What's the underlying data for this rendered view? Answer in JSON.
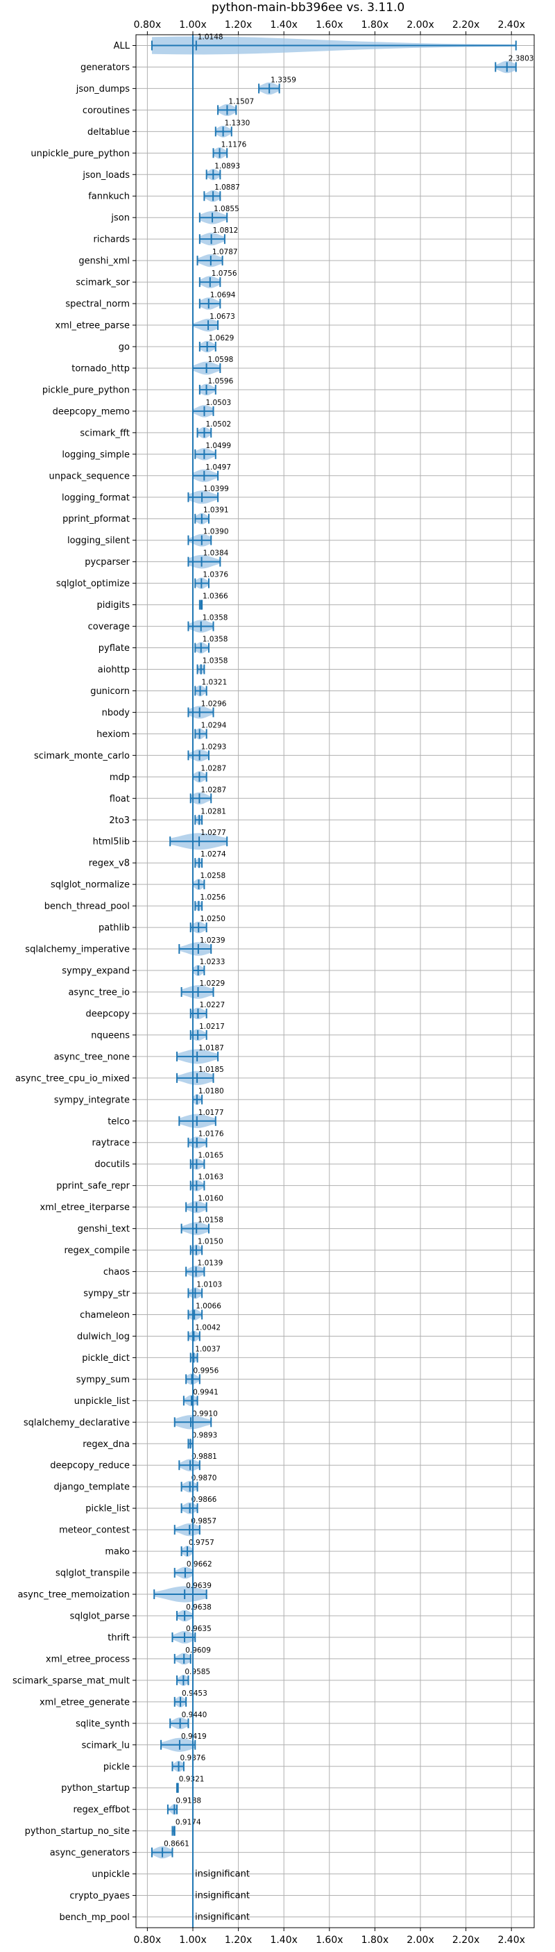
{
  "chart_data": {
    "type": "violin",
    "title": "python-main-bb396ee vs. 3.11.0",
    "xlim": [
      0.75,
      2.5
    ],
    "x_ticks": [
      0.8,
      1.0,
      1.2,
      1.4,
      1.6,
      1.8,
      2.0,
      2.2,
      2.4
    ],
    "x_tick_labels": [
      "0.80x",
      "1.00x",
      "1.20x",
      "1.40x",
      "1.60x",
      "1.80x",
      "2.00x",
      "2.20x",
      "2.40x"
    ],
    "reference_line": 1.0,
    "grid": true,
    "colors": {
      "line": "#1f77b4",
      "violin": "#9ec4e6"
    },
    "insignificant_text": "insignificant",
    "benchmarks": [
      {
        "name": "ALL",
        "value": 1.0148,
        "label": "1.0148",
        "lo": 0.82,
        "hi": 2.42
      },
      {
        "name": "generators",
        "value": 2.3803,
        "label": "2.3803",
        "lo": 2.33,
        "hi": 2.42
      },
      {
        "name": "json_dumps",
        "value": 1.3359,
        "label": "1.3359",
        "lo": 1.29,
        "hi": 1.38
      },
      {
        "name": "coroutines",
        "value": 1.1507,
        "label": "1.1507",
        "lo": 1.11,
        "hi": 1.19
      },
      {
        "name": "deltablue",
        "value": 1.133,
        "label": "1.1330",
        "lo": 1.1,
        "hi": 1.17
      },
      {
        "name": "unpickle_pure_python",
        "value": 1.1176,
        "label": "1.1176",
        "lo": 1.09,
        "hi": 1.15
      },
      {
        "name": "json_loads",
        "value": 1.0893,
        "label": "1.0893",
        "lo": 1.06,
        "hi": 1.12
      },
      {
        "name": "fannkuch",
        "value": 1.0887,
        "label": "1.0887",
        "lo": 1.05,
        "hi": 1.12
      },
      {
        "name": "json",
        "value": 1.0855,
        "label": "1.0855",
        "lo": 1.03,
        "hi": 1.15
      },
      {
        "name": "richards",
        "value": 1.0812,
        "label": "1.0812",
        "lo": 1.03,
        "hi": 1.14
      },
      {
        "name": "genshi_xml",
        "value": 1.0787,
        "label": "1.0787",
        "lo": 1.02,
        "hi": 1.13
      },
      {
        "name": "scimark_sor",
        "value": 1.0756,
        "label": "1.0756",
        "lo": 1.03,
        "hi": 1.12
      },
      {
        "name": "spectral_norm",
        "value": 1.0694,
        "label": "1.0694",
        "lo": 1.03,
        "hi": 1.12
      },
      {
        "name": "xml_etree_parse",
        "value": 1.0673,
        "label": "1.0673",
        "lo": 1.0,
        "hi": 1.11
      },
      {
        "name": "go",
        "value": 1.0629,
        "label": "1.0629",
        "lo": 1.03,
        "hi": 1.1
      },
      {
        "name": "tornado_http",
        "value": 1.0598,
        "label": "1.0598",
        "lo": 1.0,
        "hi": 1.12
      },
      {
        "name": "pickle_pure_python",
        "value": 1.0596,
        "label": "1.0596",
        "lo": 1.03,
        "hi": 1.1
      },
      {
        "name": "deepcopy_memo",
        "value": 1.0503,
        "label": "1.0503",
        "lo": 1.0,
        "hi": 1.09
      },
      {
        "name": "scimark_fft",
        "value": 1.0502,
        "label": "1.0502",
        "lo": 1.02,
        "hi": 1.08
      },
      {
        "name": "logging_simple",
        "value": 1.0499,
        "label": "1.0499",
        "lo": 1.01,
        "hi": 1.1
      },
      {
        "name": "unpack_sequence",
        "value": 1.0497,
        "label": "1.0497",
        "lo": 1.0,
        "hi": 1.11
      },
      {
        "name": "logging_format",
        "value": 1.0399,
        "label": "1.0399",
        "lo": 0.98,
        "hi": 1.11
      },
      {
        "name": "pprint_pformat",
        "value": 1.0391,
        "label": "1.0391",
        "lo": 1.01,
        "hi": 1.07
      },
      {
        "name": "logging_silent",
        "value": 1.039,
        "label": "1.0390",
        "lo": 0.98,
        "hi": 1.08
      },
      {
        "name": "pycparser",
        "value": 1.0384,
        "label": "1.0384",
        "lo": 0.98,
        "hi": 1.12
      },
      {
        "name": "sqlglot_optimize",
        "value": 1.0376,
        "label": "1.0376",
        "lo": 1.01,
        "hi": 1.07
      },
      {
        "name": "pidigits",
        "value": 1.0366,
        "label": "1.0366",
        "lo": 1.03,
        "hi": 1.04
      },
      {
        "name": "coverage",
        "value": 1.0358,
        "label": "1.0358",
        "lo": 0.98,
        "hi": 1.09
      },
      {
        "name": "pyflate",
        "value": 1.0358,
        "label": "1.0358",
        "lo": 1.01,
        "hi": 1.07
      },
      {
        "name": "aiohttp",
        "value": 1.0358,
        "label": "1.0358",
        "lo": 1.02,
        "hi": 1.05
      },
      {
        "name": "gunicorn",
        "value": 1.0321,
        "label": "1.0321",
        "lo": 1.01,
        "hi": 1.06
      },
      {
        "name": "nbody",
        "value": 1.0296,
        "label": "1.0296",
        "lo": 0.98,
        "hi": 1.09
      },
      {
        "name": "hexiom",
        "value": 1.0294,
        "label": "1.0294",
        "lo": 1.01,
        "hi": 1.06
      },
      {
        "name": "scimark_monte_carlo",
        "value": 1.0293,
        "label": "1.0293",
        "lo": 0.98,
        "hi": 1.07
      },
      {
        "name": "mdp",
        "value": 1.0287,
        "label": "1.0287",
        "lo": 1.0,
        "hi": 1.06
      },
      {
        "name": "float",
        "value": 1.0287,
        "label": "1.0287",
        "lo": 0.99,
        "hi": 1.08
      },
      {
        "name": "2to3",
        "value": 1.0281,
        "label": "1.0281",
        "lo": 1.01,
        "hi": 1.04
      },
      {
        "name": "html5lib",
        "value": 1.0277,
        "label": "1.0277",
        "lo": 0.9,
        "hi": 1.15
      },
      {
        "name": "regex_v8",
        "value": 1.0274,
        "label": "1.0274",
        "lo": 1.01,
        "hi": 1.04
      },
      {
        "name": "sqlglot_normalize",
        "value": 1.0258,
        "label": "1.0258",
        "lo": 1.0,
        "hi": 1.05
      },
      {
        "name": "bench_thread_pool",
        "value": 1.0256,
        "label": "1.0256",
        "lo": 1.01,
        "hi": 1.04
      },
      {
        "name": "pathlib",
        "value": 1.025,
        "label": "1.0250",
        "lo": 0.99,
        "hi": 1.06
      },
      {
        "name": "sqlalchemy_imperative",
        "value": 1.0239,
        "label": "1.0239",
        "lo": 0.94,
        "hi": 1.08
      },
      {
        "name": "sympy_expand",
        "value": 1.0233,
        "label": "1.0233",
        "lo": 1.0,
        "hi": 1.05
      },
      {
        "name": "async_tree_io",
        "value": 1.0229,
        "label": "1.0229",
        "lo": 0.95,
        "hi": 1.09
      },
      {
        "name": "deepcopy",
        "value": 1.0227,
        "label": "1.0227",
        "lo": 0.99,
        "hi": 1.06
      },
      {
        "name": "nqueens",
        "value": 1.0217,
        "label": "1.0217",
        "lo": 0.99,
        "hi": 1.06
      },
      {
        "name": "async_tree_none",
        "value": 1.0187,
        "label": "1.0187",
        "lo": 0.93,
        "hi": 1.11
      },
      {
        "name": "async_tree_cpu_io_mixed",
        "value": 1.0185,
        "label": "1.0185",
        "lo": 0.93,
        "hi": 1.09
      },
      {
        "name": "sympy_integrate",
        "value": 1.018,
        "label": "1.0180",
        "lo": 1.0,
        "hi": 1.04
      },
      {
        "name": "telco",
        "value": 1.0177,
        "label": "1.0177",
        "lo": 0.94,
        "hi": 1.1
      },
      {
        "name": "raytrace",
        "value": 1.0176,
        "label": "1.0176",
        "lo": 0.98,
        "hi": 1.06
      },
      {
        "name": "docutils",
        "value": 1.0165,
        "label": "1.0165",
        "lo": 0.99,
        "hi": 1.05
      },
      {
        "name": "pprint_safe_repr",
        "value": 1.0163,
        "label": "1.0163",
        "lo": 0.99,
        "hi": 1.05
      },
      {
        "name": "xml_etree_iterparse",
        "value": 1.016,
        "label": "1.0160",
        "lo": 0.97,
        "hi": 1.06
      },
      {
        "name": "genshi_text",
        "value": 1.0158,
        "label": "1.0158",
        "lo": 0.95,
        "hi": 1.07
      },
      {
        "name": "regex_compile",
        "value": 1.015,
        "label": "1.0150",
        "lo": 0.99,
        "hi": 1.04
      },
      {
        "name": "chaos",
        "value": 1.0139,
        "label": "1.0139",
        "lo": 0.97,
        "hi": 1.05
      },
      {
        "name": "sympy_str",
        "value": 1.0103,
        "label": "1.0103",
        "lo": 0.98,
        "hi": 1.04
      },
      {
        "name": "chameleon",
        "value": 1.0066,
        "label": "1.0066",
        "lo": 0.98,
        "hi": 1.04
      },
      {
        "name": "dulwich_log",
        "value": 1.0042,
        "label": "1.0042",
        "lo": 0.98,
        "hi": 1.03
      },
      {
        "name": "pickle_dict",
        "value": 1.0037,
        "label": "1.0037",
        "lo": 0.99,
        "hi": 1.02
      },
      {
        "name": "sympy_sum",
        "value": 0.9956,
        "label": "0.9956",
        "lo": 0.97,
        "hi": 1.03
      },
      {
        "name": "unpickle_list",
        "value": 0.9941,
        "label": "0.9941",
        "lo": 0.96,
        "hi": 1.02
      },
      {
        "name": "sqlalchemy_declarative",
        "value": 0.991,
        "label": "0.9910",
        "lo": 0.92,
        "hi": 1.08
      },
      {
        "name": "regex_dna",
        "value": 0.9893,
        "label": "0.9893",
        "lo": 0.98,
        "hi": 1.0
      },
      {
        "name": "deepcopy_reduce",
        "value": 0.9881,
        "label": "0.9881",
        "lo": 0.94,
        "hi": 1.03
      },
      {
        "name": "django_template",
        "value": 0.987,
        "label": "0.9870",
        "lo": 0.95,
        "hi": 1.02
      },
      {
        "name": "pickle_list",
        "value": 0.9866,
        "label": "0.9866",
        "lo": 0.95,
        "hi": 1.02
      },
      {
        "name": "meteor_contest",
        "value": 0.9857,
        "label": "0.9857",
        "lo": 0.92,
        "hi": 1.03
      },
      {
        "name": "mako",
        "value": 0.9757,
        "label": "0.9757",
        "lo": 0.95,
        "hi": 1.0
      },
      {
        "name": "sqlglot_transpile",
        "value": 0.9662,
        "label": "0.9662",
        "lo": 0.92,
        "hi": 1.0
      },
      {
        "name": "async_tree_memoization",
        "value": 0.9639,
        "label": "0.9639",
        "lo": 0.83,
        "hi": 1.06
      },
      {
        "name": "sqlglot_parse",
        "value": 0.9638,
        "label": "0.9638",
        "lo": 0.93,
        "hi": 1.0
      },
      {
        "name": "thrift",
        "value": 0.9635,
        "label": "0.9635",
        "lo": 0.91,
        "hi": 1.01
      },
      {
        "name": "xml_etree_process",
        "value": 0.9609,
        "label": "0.9609",
        "lo": 0.92,
        "hi": 0.99
      },
      {
        "name": "scimark_sparse_mat_mult",
        "value": 0.9585,
        "label": "0.9585",
        "lo": 0.93,
        "hi": 0.98
      },
      {
        "name": "xml_etree_generate",
        "value": 0.9453,
        "label": "0.9453",
        "lo": 0.92,
        "hi": 0.97
      },
      {
        "name": "sqlite_synth",
        "value": 0.944,
        "label": "0.9440",
        "lo": 0.9,
        "hi": 0.98
      },
      {
        "name": "scimark_lu",
        "value": 0.9419,
        "label": "0.9419",
        "lo": 0.86,
        "hi": 1.01
      },
      {
        "name": "pickle",
        "value": 0.9376,
        "label": "0.9376",
        "lo": 0.91,
        "hi": 0.96
      },
      {
        "name": "python_startup",
        "value": 0.9321,
        "label": "0.9321",
        "lo": 0.93,
        "hi": 0.935
      },
      {
        "name": "regex_effbot",
        "value": 0.9188,
        "label": "0.9188",
        "lo": 0.89,
        "hi": 0.93
      },
      {
        "name": "python_startup_no_site",
        "value": 0.9174,
        "label": "0.9174",
        "lo": 0.91,
        "hi": 0.92
      },
      {
        "name": "async_generators",
        "value": 0.8661,
        "label": "0.8661",
        "lo": 0.82,
        "hi": 0.91
      },
      {
        "name": "unpickle",
        "value": null,
        "label": "",
        "insignificant": true
      },
      {
        "name": "crypto_pyaes",
        "value": null,
        "label": "",
        "insignificant": true
      },
      {
        "name": "bench_mp_pool",
        "value": null,
        "label": "",
        "insignificant": true
      }
    ]
  }
}
